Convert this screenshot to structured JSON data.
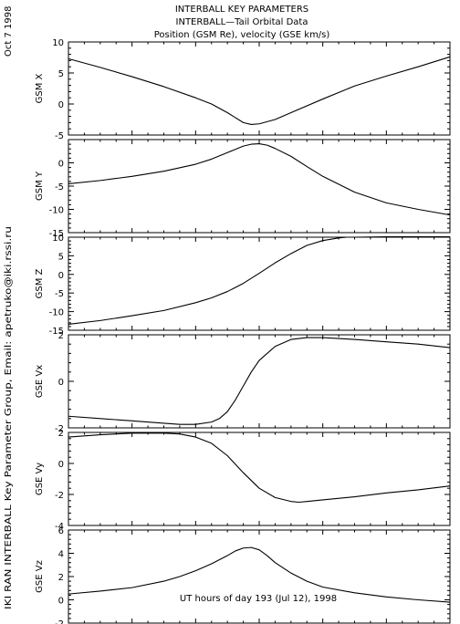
{
  "header": {
    "title_lines": [
      "INTERBALL KEY PARAMETERS",
      "INTERBALL—Tail Orbital Data",
      "Position (GSM Re), velocity (GSE km/s)"
    ],
    "date_stamp": "Oct  7 1998",
    "side_credit": "IKI RAN INTERBALL Key Parameter Group, Email: apetruko@iki.rssi.ru"
  },
  "x_axis": {
    "label": "UT hours of day 193 (Jul 12), 1998",
    "range": [
      0,
      24
    ],
    "ticks": [
      0,
      4,
      8,
      12,
      16,
      20,
      24
    ]
  },
  "chart_data": [
    {
      "type": "line",
      "ylabel": "GSM X",
      "ylim": [
        -5,
        10
      ],
      "yticks": [
        -5,
        0,
        5,
        10
      ],
      "x": [
        0,
        2,
        4,
        6,
        8,
        9,
        10,
        10.5,
        11,
        11.5,
        12,
        13,
        14,
        16,
        18,
        20,
        22,
        24
      ],
      "y": [
        7.3,
        5.9,
        4.4,
        2.8,
        1.0,
        0.0,
        -1.4,
        -2.2,
        -3.0,
        -3.3,
        -3.2,
        -2.5,
        -1.4,
        0.8,
        2.9,
        4.5,
        6.0,
        7.6
      ]
    },
    {
      "type": "line",
      "ylabel": "GSM Y",
      "ylim": [
        -15,
        5
      ],
      "yticks": [
        -15,
        -10,
        -5,
        0
      ],
      "x": [
        0,
        2,
        4,
        6,
        8,
        9,
        10,
        11,
        11.5,
        12,
        12.5,
        13,
        14,
        15,
        16,
        18,
        20,
        22,
        24
      ],
      "y": [
        -4.5,
        -3.8,
        -2.9,
        -1.8,
        -0.3,
        0.8,
        2.2,
        3.6,
        4.0,
        4.1,
        3.8,
        3.1,
        1.4,
        -0.8,
        -2.9,
        -6.3,
        -8.6,
        -10.0,
        -11.2
      ]
    },
    {
      "type": "line",
      "ylabel": "GSM Z",
      "ylim": [
        -15,
        10
      ],
      "yticks": [
        -15,
        -10,
        -5,
        0,
        5,
        10
      ],
      "x": [
        0,
        2,
        4,
        6,
        8,
        9,
        10,
        11,
        12,
        13,
        14,
        15,
        16,
        17,
        17.5,
        18,
        20,
        22,
        24
      ],
      "y": [
        -13.4,
        -12.4,
        -11.1,
        -9.7,
        -7.6,
        -6.3,
        -4.6,
        -2.4,
        0.3,
        3.1,
        5.6,
        7.8,
        9.1,
        9.8,
        10.0,
        10.0,
        10.1,
        10.1,
        10.1
      ]
    },
    {
      "type": "line",
      "ylabel": "GSE Vx",
      "ylim": [
        -2,
        2
      ],
      "yticks": [
        -2,
        0,
        2
      ],
      "x": [
        0,
        2,
        4,
        6,
        7,
        8,
        9,
        9.5,
        10,
        10.5,
        11,
        11.5,
        12,
        13,
        14,
        15,
        16,
        18,
        20,
        22,
        24
      ],
      "y": [
        -1.5,
        -1.6,
        -1.7,
        -1.8,
        -1.85,
        -1.85,
        -1.75,
        -1.6,
        -1.3,
        -0.8,
        -0.2,
        0.4,
        0.9,
        1.5,
        1.8,
        1.88,
        1.88,
        1.8,
        1.7,
        1.6,
        1.45
      ]
    },
    {
      "type": "line",
      "ylabel": "GSE Vy",
      "ylim": [
        -4,
        2
      ],
      "yticks": [
        -4,
        -2,
        0,
        2
      ],
      "x": [
        0,
        2,
        4,
        6,
        7,
        8,
        9,
        10,
        11,
        12,
        13,
        14,
        14.5,
        15,
        16,
        18,
        20,
        22,
        24
      ],
      "y": [
        1.7,
        1.85,
        1.95,
        1.95,
        1.9,
        1.7,
        1.3,
        0.5,
        -0.6,
        -1.6,
        -2.2,
        -2.45,
        -2.5,
        -2.45,
        -2.35,
        -2.15,
        -1.9,
        -1.7,
        -1.45
      ]
    },
    {
      "type": "line",
      "ylabel": "GSE Vz",
      "ylim": [
        -2,
        6
      ],
      "yticks": [
        -2,
        0,
        2,
        4,
        6
      ],
      "x": [
        0,
        2,
        4,
        6,
        7,
        8,
        9,
        10,
        10.5,
        11,
        11.5,
        12,
        12.5,
        13,
        14,
        15,
        16,
        18,
        20,
        22,
        24
      ],
      "y": [
        0.5,
        0.75,
        1.05,
        1.6,
        2.0,
        2.5,
        3.1,
        3.8,
        4.2,
        4.45,
        4.5,
        4.3,
        3.8,
        3.2,
        2.3,
        1.6,
        1.1,
        0.6,
        0.25,
        0.0,
        -0.2
      ]
    }
  ]
}
